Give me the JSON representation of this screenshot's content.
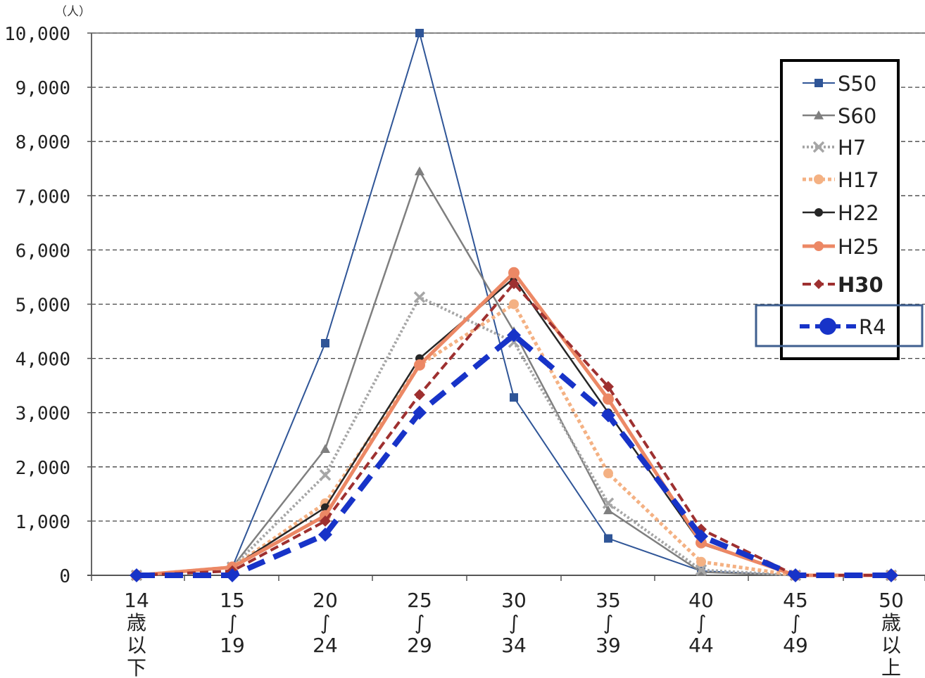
{
  "chart_data": {
    "type": "line",
    "y_unit_label": "（人）",
    "ylim": [
      0,
      10000
    ],
    "y_ticks": [
      "10,000",
      "9,000",
      "8,000",
      "7,000",
      "6,000",
      "5,000",
      "4,000",
      "3,000",
      "2,000",
      "1,000",
      "0"
    ],
    "y_tick_values": [
      10000,
      9000,
      8000,
      7000,
      6000,
      5000,
      4000,
      3000,
      2000,
      1000,
      0
    ],
    "categories": [
      [
        "14",
        "歳",
        "以",
        "下"
      ],
      [
        "15",
        "∫",
        "19"
      ],
      [
        "20",
        "∫",
        "24"
      ],
      [
        "25",
        "∫",
        "29"
      ],
      [
        "30",
        "∫",
        "34"
      ],
      [
        "35",
        "∫",
        "39"
      ],
      [
        "40",
        "∫",
        "44"
      ],
      [
        "45",
        "∫",
        "49"
      ],
      [
        "50",
        "歳",
        "以",
        "上"
      ]
    ],
    "grid": true,
    "legend_position": "top-right",
    "series": [
      {
        "name": "S50",
        "color": "#2f5597",
        "values": [
          0,
          150,
          4280,
          10000,
          3280,
          680,
          80,
          0,
          0
        ]
      },
      {
        "name": "S60",
        "color": "#7f7f7f",
        "values": [
          0,
          150,
          2330,
          7450,
          4500,
          1200,
          60,
          0,
          0
        ]
      },
      {
        "name": "H7",
        "color": "#a6a6a6",
        "values": [
          0,
          150,
          1850,
          5130,
          4300,
          1330,
          100,
          0,
          0
        ]
      },
      {
        "name": "H17",
        "color": "#f4b183",
        "values": [
          0,
          150,
          1330,
          3880,
          5000,
          1880,
          250,
          0,
          0
        ]
      },
      {
        "name": "H22",
        "color": "#262626",
        "values": [
          0,
          150,
          1250,
          4000,
          5480,
          3000,
          580,
          0,
          0
        ]
      },
      {
        "name": "H25",
        "color": "#ec8865",
        "values": [
          0,
          150,
          1100,
          3880,
          5580,
          3250,
          600,
          0,
          0
        ]
      },
      {
        "name": "H30",
        "color": "#9e3030",
        "values": [
          0,
          80,
          1000,
          3330,
          5380,
          3480,
          850,
          0,
          0
        ]
      },
      {
        "name": "R4",
        "color": "#1733c8",
        "values": [
          0,
          0,
          750,
          3000,
          4430,
          2950,
          720,
          0,
          0
        ]
      }
    ]
  }
}
